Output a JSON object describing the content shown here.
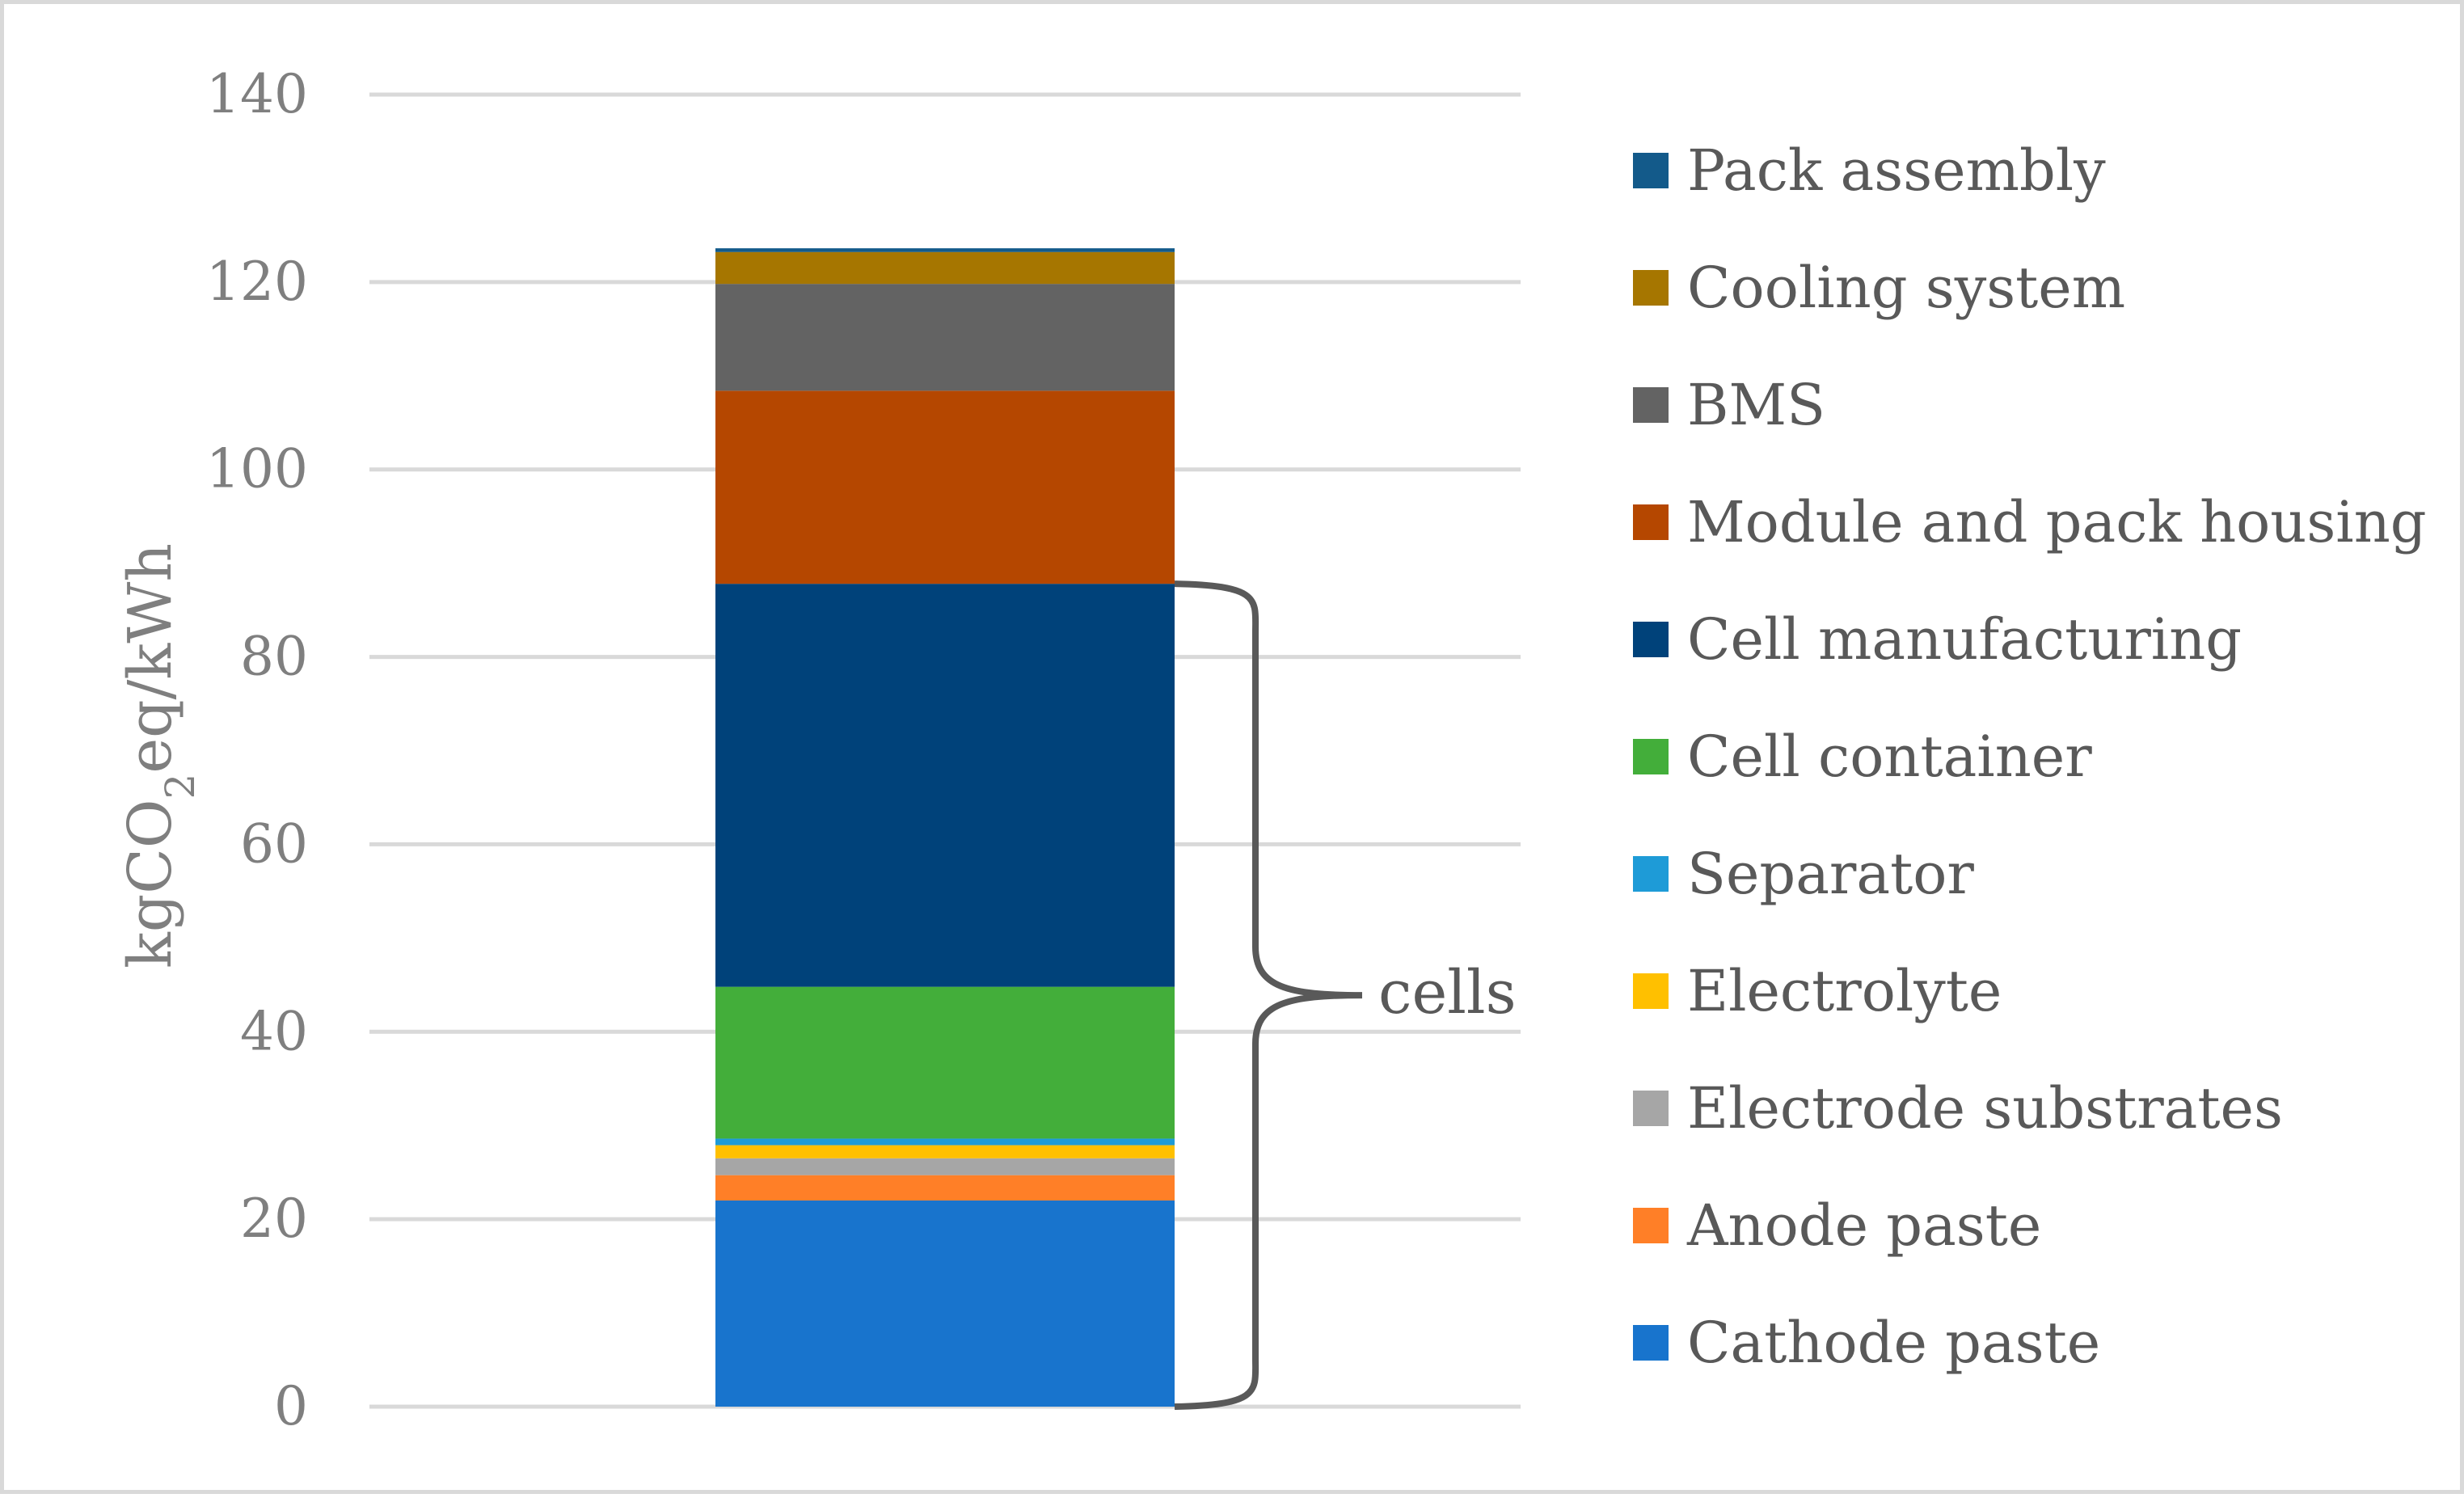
{
  "chart_data": {
    "type": "bar",
    "stacked": true,
    "title": "",
    "xlabel": "",
    "ylabel_parts": [
      "kgCO",
      "2",
      "eq/kWh"
    ],
    "ylim": [
      0,
      140
    ],
    "yticks": [
      0,
      20,
      40,
      60,
      80,
      100,
      120,
      140
    ],
    "grid": true,
    "legend_position": "right",
    "categories": [
      ""
    ],
    "series": [
      {
        "name": "Cathode paste",
        "values": [
          22.0
        ],
        "color": "#1874CD"
      },
      {
        "name": "Anode paste",
        "values": [
          2.7
        ],
        "color": "#FF7F27"
      },
      {
        "name": "Electrode substrates",
        "values": [
          1.8
        ],
        "color": "#A6A6A6"
      },
      {
        "name": "Electrolyte",
        "values": [
          1.4
        ],
        "color": "#FFC000"
      },
      {
        "name": "Separator",
        "values": [
          0.7
        ],
        "color": "#1E9BD7"
      },
      {
        "name": "Cell container",
        "values": [
          16.2
        ],
        "color": "#43AE3A"
      },
      {
        "name": "Cell manufacturing",
        "values": [
          43.0
        ],
        "color": "#00427A"
      },
      {
        "name": "Module and pack housing",
        "values": [
          20.6
        ],
        "color": "#B54700"
      },
      {
        "name": "BMS",
        "values": [
          11.4
        ],
        "color": "#636363"
      },
      {
        "name": "Cooling system",
        "values": [
          3.4
        ],
        "color": "#A67600"
      },
      {
        "name": "Pack assembly",
        "values": [
          0.4
        ],
        "color": "#135A8A"
      }
    ],
    "annotations": [
      {
        "text": "cells",
        "spans": [
          "Cathode paste",
          "Anode paste",
          "Electrode substrates",
          "Electrolyte",
          "Separator",
          "Cell container",
          "Cell manufacturing"
        ]
      }
    ]
  }
}
